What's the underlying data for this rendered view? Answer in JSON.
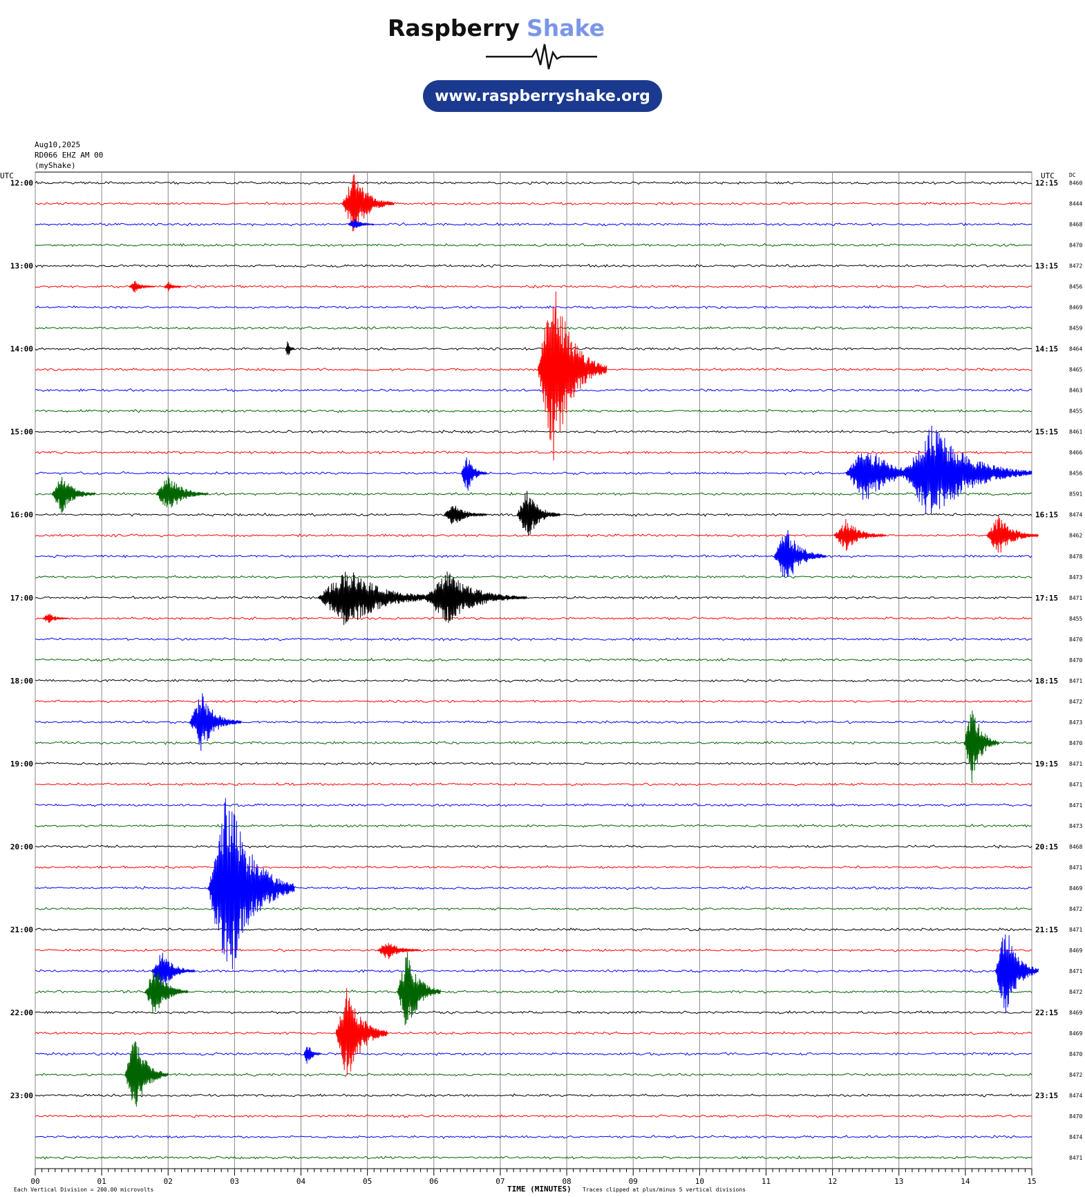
{
  "header": {
    "brand": "Raspberry",
    "brand_accent": "Shake",
    "url": "www.raspberryshake.org"
  },
  "chart_data": {
    "type": "helicorder",
    "date": "Aug10,2025",
    "station": "RD066 EHZ AM 00",
    "network": "(myShake)",
    "left_axis_label": "UTC",
    "right_axis_label": "UTC",
    "dc_label": "DC",
    "start_labels": [
      "12:00",
      "13:00",
      "14:00",
      "15:00",
      "16:00",
      "17:00",
      "18:00",
      "19:00",
      "20:00",
      "21:00",
      "22:00",
      "23:00"
    ],
    "end_labels": [
      "12:15",
      "13:15",
      "14:15",
      "15:15",
      "16:15",
      "17:15",
      "18:15",
      "19:15",
      "20:15",
      "21:15",
      "22:15",
      "23:15"
    ],
    "dc_values": [
      8460,
      8444,
      8468,
      8470,
      8472,
      8456,
      8469,
      8459,
      8464,
      8465,
      8463,
      8455,
      8461,
      8466,
      8456,
      8591,
      8474,
      8462,
      8478,
      8473,
      8471,
      8455,
      8470,
      8470,
      8471,
      8472,
      8473,
      8470,
      8471,
      8471,
      8471,
      8473,
      8468,
      8471,
      8469,
      8472,
      8471,
      8469,
      8471,
      8472,
      8469,
      8469,
      8470,
      8472,
      8474,
      8470,
      8474,
      8471
    ],
    "colors": [
      "#000000",
      "#ff0000",
      "#0000ff",
      "#006400"
    ],
    "xlim": [
      0,
      15
    ],
    "xticks": [
      {
        "value": 0,
        "label": "00"
      },
      {
        "value": 1,
        "label": "01"
      },
      {
        "value": 2,
        "label": "02"
      },
      {
        "value": 3,
        "label": "03"
      },
      {
        "value": 4,
        "label": "04"
      },
      {
        "value": 5,
        "label": "05"
      },
      {
        "value": 6,
        "label": "06"
      },
      {
        "value": 7,
        "label": "07"
      },
      {
        "value": 8,
        "label": "08"
      },
      {
        "value": 9,
        "label": "09"
      },
      {
        "value": 10,
        "label": "10"
      },
      {
        "value": 11,
        "label": "11"
      },
      {
        "value": 12,
        "label": "12"
      },
      {
        "value": 13,
        "label": "13"
      },
      {
        "value": 14,
        "label": "14"
      },
      {
        "value": 15,
        "label": "15"
      }
    ],
    "x_label": "TIME (MINUTES)",
    "scale_note": "Each Vertical Division =  200.00 microvolts",
    "clip_note": "Traces clipped at plus/minus 5 vertical divisions",
    "events": {
      "row": [
        1,
        2,
        5,
        5,
        8,
        9,
        14,
        14,
        14,
        15,
        15,
        16,
        16,
        17,
        17,
        18,
        20,
        20,
        21,
        26,
        27,
        34,
        37,
        38,
        38,
        39,
        39,
        41,
        42,
        43
      ],
      "minute": [
        4.8,
        4.8,
        1.5,
        2.0,
        3.8,
        7.8,
        13.5,
        6.5,
        12.5,
        0.4,
        2.0,
        6.3,
        7.4,
        12.2,
        14.5,
        11.3,
        4.7,
        6.2,
        0.2,
        2.5,
        14.1,
        2.9,
        5.3,
        1.9,
        14.6,
        1.8,
        5.6,
        4.7,
        4.1,
        1.5
      ],
      "amplitude": [
        1.5,
        0.3,
        0.3,
        0.3,
        0.6,
        4.5,
        2.5,
        1,
        1.5,
        1,
        1,
        0.6,
        1.3,
        0.8,
        1,
        1.5,
        1.5,
        1.3,
        0.3,
        1.5,
        2,
        5,
        0.5,
        1,
        2.5,
        1.3,
        2.2,
        2.5,
        0.6,
        2
      ],
      "duration": [
        0.6,
        0.3,
        0.3,
        0.2,
        0.1,
        0.8,
        1.5,
        0.3,
        1,
        0.5,
        0.6,
        0.5,
        0.5,
        0.6,
        0.6,
        0.6,
        1.5,
        1.2,
        0.3,
        0.6,
        0.4,
        1,
        0.5,
        0.5,
        0.5,
        0.5,
        0.5,
        0.6,
        0.2,
        0.5
      ]
    }
  }
}
